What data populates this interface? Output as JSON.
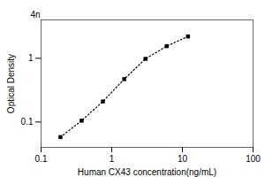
{
  "chart_data": {
    "type": "line",
    "x": [
      0.188,
      0.375,
      0.75,
      1.5,
      3.0,
      6.0,
      12.0
    ],
    "values": [
      0.058,
      0.105,
      0.21,
      0.47,
      0.98,
      1.55,
      2.2
    ],
    "xlabel": "Human CX43 concentration(ng/mL)",
    "ylabel": "Optical Density",
    "annotation": "4n",
    "xlim": [
      0.1,
      100
    ],
    "ylim": [
      0.04,
      4
    ],
    "xticks": [
      0.1,
      1,
      10,
      100
    ],
    "yticks": [
      0.1,
      1
    ],
    "log": true,
    "grid": false,
    "color": "#000000",
    "marker": "square",
    "line_style": "dotted"
  }
}
